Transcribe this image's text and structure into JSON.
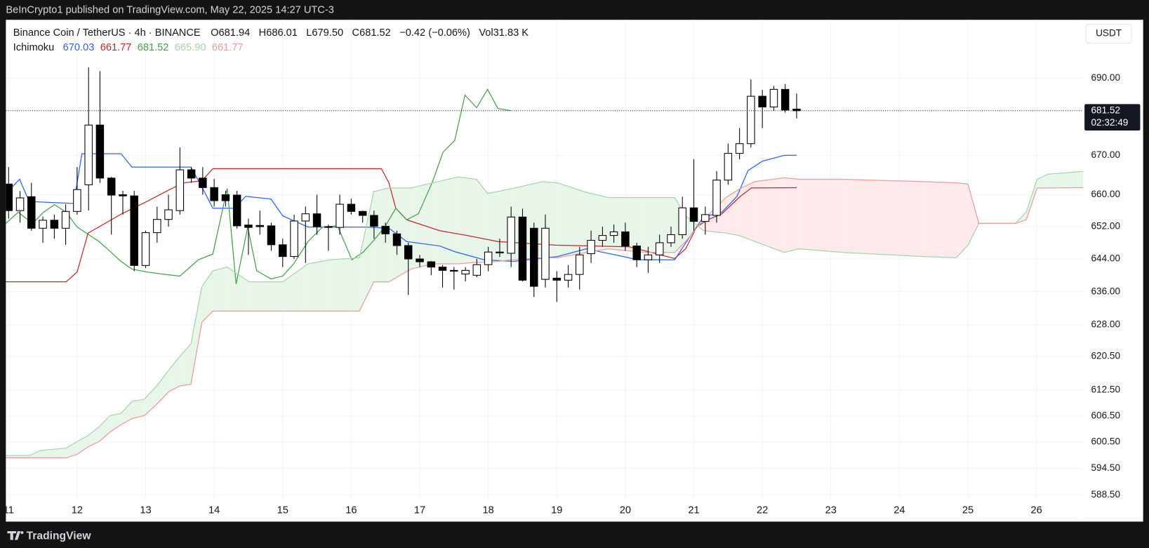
{
  "topbar": "BeInCrypto1 published on TradingView.com, May 22, 2025 14:27 UTC-3",
  "footer": "TradingView",
  "chart_data": {
    "type": "candlestick",
    "title": "Binance Coin / TetherUS · 4h · BINANCE",
    "ohlc": [
      "O681.94",
      "H686.01",
      "L679.50",
      "C681.52",
      "−0.42 (−0.06%)",
      "Vol31.83 K"
    ],
    "currency": "USDT",
    "log_scale": true,
    "grid": true,
    "up_color": "#ffffff",
    "down_color": "#000000",
    "wick_color": "#000000",
    "x": [
      11,
      11.167,
      11.333,
      11.5,
      11.667,
      11.833,
      12,
      12.167,
      12.333,
      12.5,
      12.667,
      12.833,
      13,
      13.167,
      13.333,
      13.5,
      13.667,
      13.833,
      14,
      14.167,
      14.333,
      14.5,
      14.667,
      14.833,
      15,
      15.167,
      15.333,
      15.5,
      15.667,
      15.833,
      16,
      16.167,
      16.333,
      16.5,
      16.667,
      16.833,
      17,
      17.167,
      17.333,
      17.5,
      17.667,
      17.833,
      18,
      18.167,
      18.333,
      18.5,
      18.667,
      18.833,
      19,
      19.167,
      19.333,
      19.5,
      19.667,
      19.833,
      20,
      20.167,
      20.333,
      20.5,
      20.667,
      20.833,
      21,
      21.167,
      21.333,
      21.5,
      21.667,
      21.833,
      22,
      22.167,
      22.333,
      22.5
    ],
    "open": [
      662.7,
      656.0,
      659.5,
      651.6,
      653.6,
      651.6,
      655.8,
      662.5,
      677.8,
      664.2,
      660.0,
      659.7,
      642.4,
      650.5,
      653.8,
      656.0,
      666.3,
      664.2,
      661.8,
      660.0,
      659.9,
      652.4,
      652.3,
      652.2,
      647.5,
      644.6,
      653.4,
      655.2,
      652.0,
      651.8,
      657.6,
      655.8,
      654.8,
      652.1,
      650.2,
      647.3,
      644.0,
      643.3,
      642.0,
      641.2,
      640.3,
      640.0,
      642.6,
      645.5,
      645.4,
      654.4,
      651.6,
      639.0,
      639.3,
      638.8,
      640.2,
      645.3,
      648.6,
      649.8,
      650.7,
      647.2,
      643.8,
      645.0,
      648.0,
      650.0,
      656.7,
      653.3,
      654.8,
      663.7,
      670.5,
      673.0,
      685.3,
      682.5,
      687.1,
      681.94
    ],
    "high": [
      667,
      660.9,
      663,
      654.5,
      655,
      657.6,
      667,
      692.9,
      691.9,
      664.5,
      661,
      661,
      651,
      657,
      660,
      672,
      667,
      667,
      664,
      661,
      661,
      654,
      656,
      653,
      649,
      655,
      657,
      660,
      652.5,
      660,
      659,
      656,
      656,
      653,
      651,
      648,
      645,
      643.5,
      642.5,
      642,
      642,
      644,
      647,
      649,
      657,
      656.5,
      653,
      655,
      641,
      642.5,
      647,
      651,
      652,
      652.5,
      653,
      648,
      647,
      650,
      652,
      659.5,
      669,
      657,
      666,
      673,
      677,
      689.7,
      687,
      688,
      688.5,
      686.01
    ],
    "low": [
      654,
      653,
      651,
      648,
      649,
      647.5,
      655,
      656,
      663,
      650,
      655,
      641,
      641.8,
      648,
      652,
      655,
      663,
      660,
      657,
      657,
      651.5,
      645,
      650,
      646,
      642,
      644,
      643,
      650,
      646,
      650,
      655,
      653,
      649,
      648,
      645,
      635.2,
      642,
      640,
      637,
      636.5,
      638.5,
      639.5,
      641,
      644.5,
      642,
      638.5,
      634.7,
      637,
      633.5,
      637,
      636.5,
      643,
      647,
      648,
      646,
      642,
      640.6,
      643,
      647,
      649,
      651,
      650,
      653,
      662.5,
      669,
      672,
      677,
      681.5,
      681,
      679.5
    ],
    "close": [
      656.0,
      659.2,
      651.6,
      653.6,
      651.6,
      655.8,
      661.3,
      677.8,
      664.2,
      659.9,
      659.7,
      642.4,
      650.5,
      653.8,
      656.2,
      666.3,
      664.2,
      661.8,
      658.5,
      658.5,
      652.2,
      651.8,
      652.0,
      647.5,
      644.6,
      653.4,
      655.2,
      652.0,
      651.8,
      657.6,
      655.8,
      654.8,
      652.1,
      650.2,
      647.3,
      644.0,
      643.3,
      642.0,
      641.2,
      641.0,
      641.2,
      642.6,
      645.7,
      645.7,
      654.4,
      638.8,
      637.3,
      651.6,
      638.8,
      640.2,
      645.0,
      648.6,
      649.8,
      650.7,
      647.2,
      643.8,
      645.0,
      648.0,
      650.0,
      656.7,
      653.3,
      655.0,
      663.7,
      670.5,
      673.0,
      685.3,
      682.5,
      687.1,
      681.7,
      681.52
    ],
    "xlim": [
      10.96,
      26.68
    ],
    "xticks": [
      11,
      12,
      13,
      14,
      15,
      16,
      17,
      18,
      19,
      20,
      21,
      22,
      23,
      24,
      25,
      26
    ],
    "ylim": [
      587.6,
      705.6
    ],
    "yticks": [
      {
        "value": 690,
        "label": "690.00"
      },
      {
        "value": 670,
        "label": "670.00"
      },
      {
        "value": 660,
        "label": "660.00"
      },
      {
        "value": 652,
        "label": "652.00"
      },
      {
        "value": 644,
        "label": "644.00"
      },
      {
        "value": 636,
        "label": "636.00"
      },
      {
        "value": 628,
        "label": "628.00"
      },
      {
        "value": 620.5,
        "label": "620.50"
      },
      {
        "value": 612.5,
        "label": "612.50"
      },
      {
        "value": 606.5,
        "label": "606.50"
      },
      {
        "value": 600.5,
        "label": "600.50"
      },
      {
        "value": 594.5,
        "label": "594.50"
      },
      {
        "value": 588.5,
        "label": "588.50"
      }
    ],
    "last_price": {
      "value": 681.52,
      "label": "681.52"
    },
    "countdown": "02:32:49",
    "indicator": {
      "name": "Ichimoku",
      "cloud_up_color": "#e8f5e9",
      "cloud_down_color": "#fdeaea",
      "lines": [
        {
          "color": "#2962ff",
          "legend_value": "670.03",
          "x": [
            10.96,
            11.16,
            11.3,
            11.95,
            12.07,
            12.64,
            12.8,
            13.66,
            13.82,
            13.98,
            14.3,
            14.46,
            14.83,
            15.0,
            15.37,
            16.22,
            16.55,
            16.81,
            17.29,
            17.51,
            17.94,
            18.36,
            19.01,
            19.43,
            19.97,
            20.18,
            20.72,
            20.93,
            21.14,
            21.41,
            21.63,
            21.79,
            22.0,
            22.32,
            22.5
          ],
          "values": [
            660.3,
            663.9,
            658.3,
            657.8,
            670.4,
            670.4,
            667.0,
            667.0,
            662.0,
            656.6,
            656.6,
            659.6,
            658.9,
            654.7,
            651.9,
            651.9,
            651.6,
            648.3,
            647.2,
            645.8,
            643.8,
            643.4,
            644.6,
            646.5,
            644.6,
            643.8,
            643.8,
            649.2,
            654.4,
            655.6,
            659.6,
            666.1,
            668.5,
            670.0,
            670.03
          ]
        },
        {
          "color": "#c62828",
          "legend_value": "661.77",
          "x": [
            10.96,
            11.84,
            12.0,
            12.16,
            12.64,
            13.02,
            13.34,
            13.55,
            13.82,
            13.98,
            16.44,
            16.55,
            16.65,
            16.81,
            17.29,
            17.72,
            18.14,
            18.99,
            20.06,
            20.72,
            20.88,
            21.04,
            21.2,
            21.41,
            21.68,
            21.84,
            22.5
          ],
          "values": [
            638.4,
            638.4,
            640.8,
            650.4,
            655.1,
            658.3,
            661.2,
            663.0,
            663.5,
            666.6,
            666.6,
            663.0,
            656.6,
            653.7,
            651.0,
            649.7,
            648.3,
            647.4,
            647.0,
            644.1,
            646.5,
            651.9,
            653.7,
            655.2,
            659.6,
            661.7,
            661.77
          ]
        },
        {
          "color": "#43a047",
          "legend_value": "681.52",
          "x": [
            10.96,
            11.14,
            11.35,
            11.51,
            11.67,
            11.84,
            12.0,
            12.16,
            12.32,
            12.48,
            12.64,
            12.8,
            13.02,
            13.23,
            13.5,
            13.77,
            13.98,
            14.09,
            14.19,
            14.32,
            14.49,
            14.62,
            14.83,
            15.0,
            15.16,
            15.37,
            15.58,
            15.8,
            16.01,
            16.17,
            16.33,
            16.49,
            16.65,
            16.81,
            16.98,
            17.18,
            17.34,
            17.51,
            17.66,
            17.83,
            17.99,
            18.14,
            18.33
          ],
          "values": [
            652.8,
            655.6,
            652.8,
            655.6,
            657.5,
            655.6,
            651.9,
            650.1,
            648.3,
            645.9,
            643.4,
            641.5,
            640.8,
            640.3,
            639.8,
            643.8,
            645.2,
            653.7,
            661.6,
            637.9,
            651.9,
            641.1,
            639.1,
            639.8,
            642.8,
            648.3,
            651.9,
            652.2,
            643.8,
            645.6,
            648.6,
            651.9,
            656.6,
            653.7,
            655.2,
            663.0,
            670.8,
            673.8,
            685.6,
            682.3,
            687.1,
            682.1,
            681.52
          ]
        },
        {
          "color": "#a5d6a7",
          "legend_value": "665.90",
          "x": [
            10.96,
            11.3,
            11.47,
            11.84,
            12.0,
            12.16,
            12.32,
            12.48,
            12.64,
            12.8,
            12.98,
            13.16,
            13.34,
            13.5,
            13.66,
            13.82,
            13.98,
            14.19,
            14.51,
            15.0,
            15.37,
            15.69,
            16.12,
            16.33,
            16.55,
            16.87,
            17.19,
            17.56,
            17.83,
            17.99,
            18.36,
            18.79,
            19.01,
            19.43,
            19.75,
            20.29,
            20.72,
            20.88,
            21.14,
            21.47,
            21.68,
            21.89,
            22.32,
            22.53,
            23.18,
            24.35,
            24.83,
            25.0,
            25.16,
            25.69,
            25.85,
            26.01,
            26.17,
            26.68
          ],
          "values": [
            597.4,
            597.4,
            598.6,
            599.1,
            600.6,
            602.0,
            604.0,
            606.6,
            607.1,
            609.9,
            610.4,
            613.5,
            617.3,
            620.5,
            623.4,
            637.2,
            641.1,
            642.0,
            638.4,
            638.4,
            642.8,
            643.8,
            644.3,
            660.8,
            661.7,
            661.7,
            663.0,
            664.5,
            663.9,
            660.3,
            661.6,
            663.3,
            663.0,
            660.6,
            659.3,
            659.3,
            659.3,
            654.7,
            651.0,
            650.4,
            649.7,
            648.3,
            645.6,
            646.5,
            645.6,
            644.6,
            644.3,
            647.4,
            652.8,
            652.8,
            655.6,
            663.9,
            665.2,
            665.9
          ]
        },
        {
          "color": "#ef9a9a",
          "legend_value": "661.77",
          "x": [
            10.96,
            11.3,
            11.47,
            11.84,
            12.0,
            12.16,
            12.32,
            12.48,
            12.64,
            12.8,
            12.98,
            13.16,
            13.34,
            13.5,
            13.66,
            13.82,
            13.98,
            14.19,
            14.51,
            15.0,
            15.37,
            15.69,
            16.12,
            16.33,
            16.55,
            16.87,
            17.19,
            17.56,
            17.83,
            17.99,
            18.36,
            18.79,
            19.01,
            19.43,
            19.75,
            20.29,
            20.72,
            20.88,
            21.14,
            21.47,
            21.68,
            21.89,
            22.32,
            22.53,
            23.18,
            24.35,
            24.83,
            25.0,
            25.16,
            25.69,
            25.85,
            26.01,
            26.17,
            26.68
          ],
          "values": [
            596.9,
            596.9,
            596.9,
            596.9,
            597.7,
            599.4,
            600.6,
            602.8,
            604.5,
            605.9,
            606.6,
            609.2,
            612.2,
            613.5,
            613.9,
            628.6,
            631.3,
            631.3,
            631.3,
            631.3,
            631.3,
            631.3,
            631.3,
            638.4,
            638.4,
            641.5,
            642.8,
            642.8,
            643.2,
            643.2,
            643.8,
            644.3,
            644.3,
            645.6,
            646.5,
            645.6,
            645.6,
            648.3,
            653.7,
            659.3,
            661.6,
            663.3,
            664.3,
            663.9,
            663.9,
            663.3,
            663.0,
            662.7,
            652.8,
            652.8,
            653.7,
            661.7,
            661.7,
            661.77
          ]
        }
      ]
    }
  }
}
